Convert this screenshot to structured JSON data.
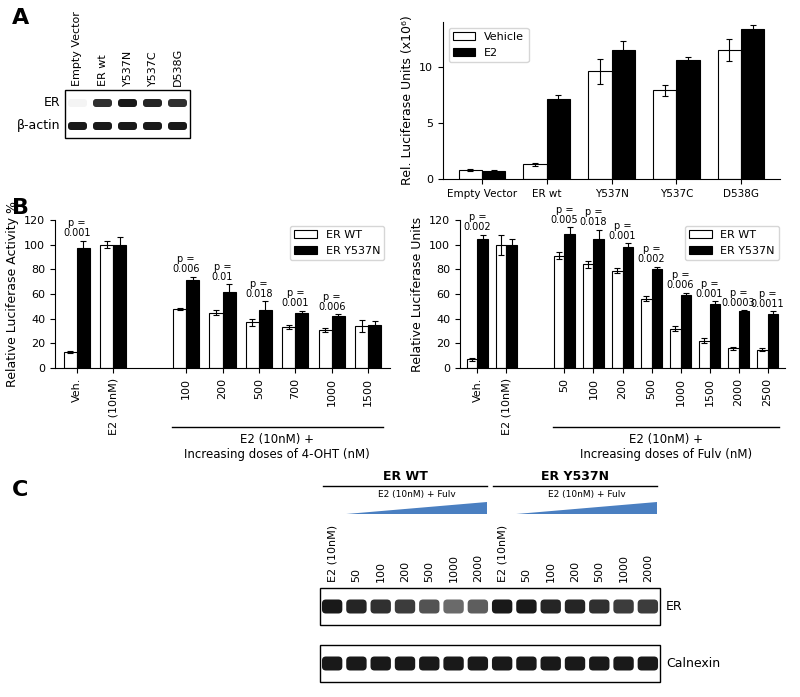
{
  "panel_labels": [
    "A",
    "B",
    "C"
  ],
  "blots": [
    {
      "lanes": [
        "Empty Vector",
        "ER wt",
        "Y537N",
        "Y537C",
        "D538G"
      ],
      "rows": [
        {
          "label": "ER",
          "intensity": [
            0.05,
            0.9,
            1.0,
            0.95,
            0.9
          ]
        },
        {
          "label": "β-actin",
          "intensity": [
            1.0,
            1.0,
            1.0,
            1.0,
            1.0
          ]
        }
      ]
    },
    {
      "groups": [
        {
          "label": "ER WT",
          "lanes": [
            "E2 (10nM)",
            "50",
            "100",
            "200",
            "500",
            "1000",
            "2000"
          ]
        },
        {
          "label": "ER Y537N",
          "lanes": [
            "E2 (10nM)",
            "50",
            "100",
            "200",
            "500",
            "1000",
            "2000"
          ]
        }
      ],
      "ramp_label": "E2 (10nM) + Fulv",
      "rows": [
        {
          "label": "ER",
          "intensity": [
            1.0,
            0.95,
            0.9,
            0.85,
            0.75,
            0.65,
            0.7,
            1.0,
            1.0,
            0.95,
            0.95,
            0.9,
            0.85,
            0.85
          ]
        },
        {
          "label": "Calnexin",
          "intensity": [
            1.0,
            1.0,
            1.0,
            1.0,
            1.0,
            1.0,
            1.0,
            1.0,
            1.0,
            1.0,
            1.0,
            1.0,
            1.0,
            1.0
          ]
        }
      ]
    }
  ],
  "chart_data": [
    {
      "type": "bar",
      "y_label": "Rel. Luciferase Units (x10⁶)",
      "categories": [
        "Empty Vector",
        "ER wt",
        "Y537N",
        "Y537C",
        "D538G"
      ],
      "series": [
        {
          "name": "Vehicle",
          "color": "#ffffff",
          "values": [
            0.8,
            1.3,
            9.6,
            7.9,
            11.5
          ],
          "errors": [
            0.1,
            0.1,
            1.1,
            0.5,
            1.0
          ]
        },
        {
          "name": "E2",
          "color": "#000000",
          "values": [
            0.7,
            7.1,
            11.5,
            10.6,
            13.4
          ],
          "errors": [
            0.1,
            0.4,
            0.8,
            0.3,
            0.3
          ]
        }
      ],
      "ylim": [
        0,
        14
      ],
      "yticks": [
        0,
        5,
        10
      ],
      "legend": "upper left"
    },
    {
      "type": "bar",
      "y_label": "Relative Luciferase Activity %",
      "categories": [
        "Veh.",
        "E2 (10nM)",
        "100",
        "200",
        "500",
        "700",
        "1000",
        "1500"
      ],
      "group_label": "E2 (10nM) +\nIncreasing doses of 4-OHT (nM)",
      "series": [
        {
          "name": "ER WT",
          "color": "#ffffff",
          "values": [
            13,
            100,
            48,
            45,
            37,
            33,
            31,
            34
          ],
          "errors": [
            1,
            3,
            1,
            2,
            3,
            1.5,
            1.5,
            5
          ]
        },
        {
          "name": "ER Y537N",
          "color": "#000000",
          "values": [
            97,
            100,
            71,
            62,
            47,
            45,
            42,
            35
          ],
          "errors": [
            6,
            6,
            3,
            6,
            7,
            1.5,
            1.5,
            3
          ]
        }
      ],
      "p_values": [
        "p =\n0.001",
        null,
        "p =\n0.006",
        "p =\n0.01",
        "p =\n0.018",
        "p =\n0.001",
        "p =\n0.006",
        null
      ],
      "ylim": [
        0,
        120
      ],
      "yticks": [
        0,
        20,
        40,
        60,
        80,
        100,
        120
      ],
      "legend": "upper right"
    },
    {
      "type": "bar",
      "y_label": "Relative Luciferase Units",
      "categories": [
        "Veh.",
        "E2 (10nM)",
        "50",
        "100",
        "200",
        "500",
        "1000",
        "1500",
        "2000",
        "2500"
      ],
      "group_label": "E2 (10nM) +\nIncreasing doses of Fulv (nM)",
      "series": [
        {
          "name": "ER WT",
          "color": "#ffffff",
          "values": [
            7,
            100,
            91,
            84,
            79,
            56,
            32,
            22,
            16,
            15
          ],
          "errors": [
            1,
            8,
            3,
            3,
            2,
            2,
            2,
            2,
            1,
            1
          ]
        },
        {
          "name": "ER Y537N",
          "color": "#000000",
          "values": [
            105,
            100,
            109,
            105,
            98,
            80,
            59,
            52,
            46,
            44
          ],
          "errors": [
            3,
            5,
            5,
            7,
            3,
            2,
            2,
            2,
            1,
            2
          ]
        }
      ],
      "p_values": [
        "p =\n0.002",
        null,
        "p =\n0.005",
        "p =\n0.018",
        "p =\n0.001",
        "p =\n0.002",
        "p =\n0.006",
        "p =\n0.001",
        "p =\n0.0003",
        "p =\n0.0011"
      ],
      "ylim": [
        0,
        120
      ],
      "yticks": [
        0,
        20,
        40,
        60,
        80,
        100,
        120
      ],
      "legend": "upper right"
    }
  ]
}
